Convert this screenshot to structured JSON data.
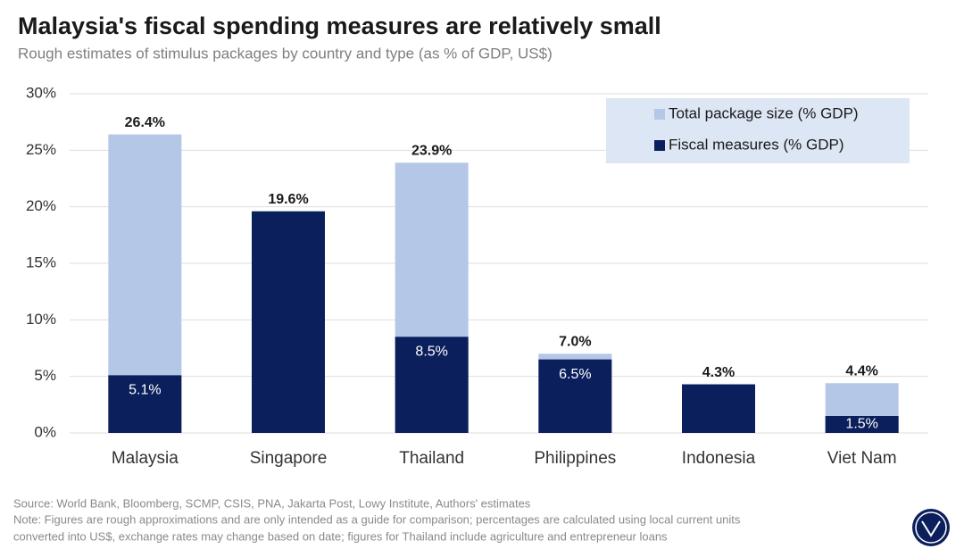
{
  "chart_data": {
    "type": "bar",
    "title": "Malaysia's fiscal spending measures are relatively small",
    "subtitle": "Rough estimates of stimulus packages by country and type (as % of GDP, US$)",
    "categories": [
      "Malaysia",
      "Singapore",
      "Thailand",
      "Philippines",
      "Indonesia",
      "Viet Nam"
    ],
    "series": [
      {
        "name": "Total package size (% GDP)",
        "color": "#b4c7e7",
        "values": [
          26.4,
          19.6,
          23.9,
          7.0,
          4.3,
          4.4
        ],
        "value_labels": [
          "26.4%",
          "19.6%",
          "23.9%",
          "7.0%",
          "4.3%",
          "4.4%"
        ]
      },
      {
        "name": "Fiscal measures (% GDP)",
        "color": "#0b1f5c",
        "values": [
          5.1,
          19.6,
          8.5,
          6.5,
          4.3,
          1.5
        ],
        "value_labels": [
          "5.1%",
          null,
          "8.5%",
          "6.5%",
          null,
          "1.5%"
        ]
      }
    ],
    "ylim": [
      0,
      30
    ],
    "yticks": [
      {
        "value": 0,
        "label": "0%"
      },
      {
        "value": 5,
        "label": "5%"
      },
      {
        "value": 10,
        "label": "10%"
      },
      {
        "value": 15,
        "label": "15%"
      },
      {
        "value": 20,
        "label": "20%"
      },
      {
        "value": 25,
        "label": "25%"
      },
      {
        "value": 30,
        "label": "30%"
      }
    ],
    "grid": true,
    "legend": "top-right",
    "source": "Source: World Bank, Bloomberg, SCMP, CSIS, PNA, Jakarta Post, Lowy Institute, Authors' estimates",
    "note": [
      "Note: Figures are rough approximations and are only intended as a guide for comparison;  percentages are calculated using local current units",
      "converted into US$, exchange rates may change based on date; figures for Thailand include agriculture and entrepreneur loans"
    ]
  }
}
